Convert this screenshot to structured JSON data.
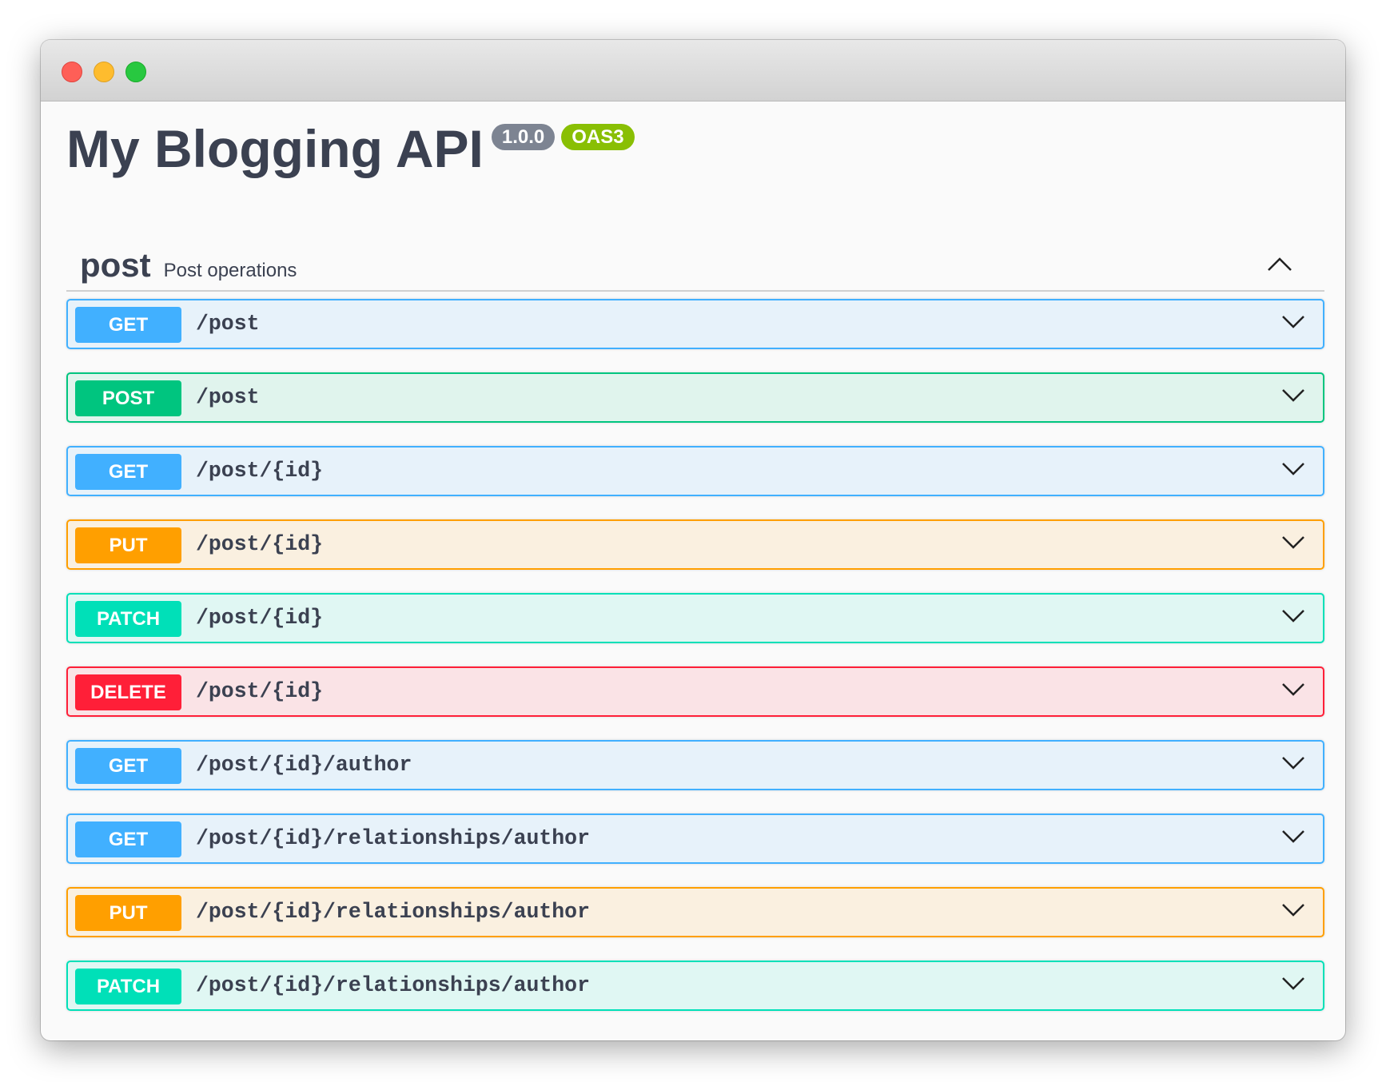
{
  "header": {
    "title": "My Blogging API",
    "version": "1.0.0",
    "spec": "OAS3"
  },
  "colors": {
    "GET": "#41b0ff",
    "POST": "#00c57f",
    "PUT": "#ff9f00",
    "PATCH": "#00e0b8",
    "DELETE": "#ff1f38"
  },
  "section": {
    "name": "post",
    "description": "Post operations",
    "icon": "chevron-up-icon"
  },
  "operations": [
    {
      "method": "GET",
      "path": "/post"
    },
    {
      "method": "POST",
      "path": "/post"
    },
    {
      "method": "GET",
      "path": "/post/{id}"
    },
    {
      "method": "PUT",
      "path": "/post/{id}"
    },
    {
      "method": "PATCH",
      "path": "/post/{id}"
    },
    {
      "method": "DELETE",
      "path": "/post/{id}"
    },
    {
      "method": "GET",
      "path": "/post/{id}/author"
    },
    {
      "method": "GET",
      "path": "/post/{id}/relationships/author"
    },
    {
      "method": "PUT",
      "path": "/post/{id}/relationships/author"
    },
    {
      "method": "PATCH",
      "path": "/post/{id}/relationships/author"
    }
  ]
}
